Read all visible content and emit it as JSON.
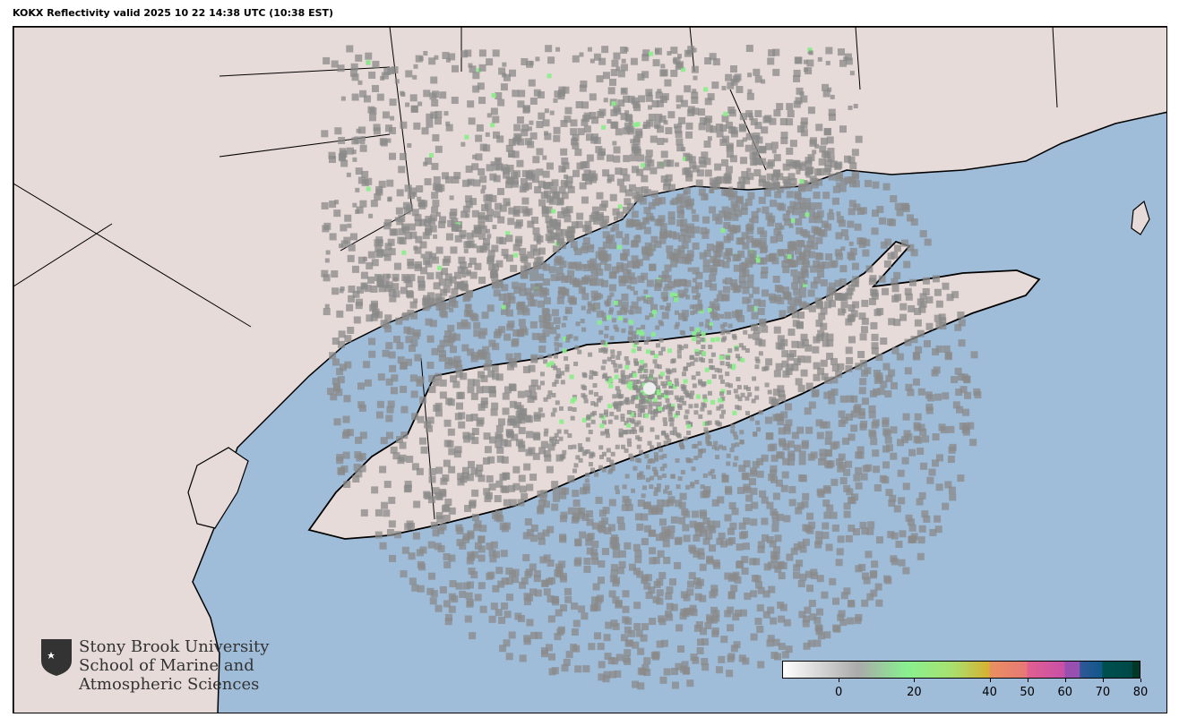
{
  "title": "KOKX Reflectivity valid 2025 10 22 14:38 UTC (10:38 EST)",
  "radar_site": "KOKX",
  "colors": {
    "water": "#9fbcd8",
    "land": "#e6dbd8",
    "echo_gray": "#8a8a8a",
    "echo_green": "#88ee88"
  },
  "colorbar": {
    "min": -15,
    "max": 80,
    "ticks": [
      "0",
      "20",
      "40",
      "50",
      "60",
      "70",
      "80"
    ],
    "tick_values": [
      0,
      20,
      40,
      50,
      60,
      70,
      80
    ],
    "stops": [
      {
        "v": -15,
        "c": "#ffffff"
      },
      {
        "v": 5,
        "c": "#aaaaaa"
      },
      {
        "v": 18,
        "c": "#88f08f"
      },
      {
        "v": 30,
        "c": "#a8e070"
      },
      {
        "v": 40,
        "c": "#d8b030"
      },
      {
        "v": 40.1,
        "c": "#e89060"
      },
      {
        "v": 50,
        "c": "#e87878"
      },
      {
        "v": 50.1,
        "c": "#e06090"
      },
      {
        "v": 60,
        "c": "#c850a8"
      },
      {
        "v": 60.1,
        "c": "#9850b0"
      },
      {
        "v": 64,
        "c": "#9850b0"
      },
      {
        "v": 64.1,
        "c": "#305898"
      },
      {
        "v": 70,
        "c": "#105888"
      },
      {
        "v": 70.1,
        "c": "#005050"
      },
      {
        "v": 78,
        "c": "#004848"
      },
      {
        "v": 78.1,
        "c": "#003828"
      },
      {
        "v": 80,
        "c": "#003828"
      }
    ]
  },
  "logo": {
    "line1": "Stony Brook University",
    "line2": "School of Marine and",
    "line3": "Atmospheric Sciences"
  }
}
